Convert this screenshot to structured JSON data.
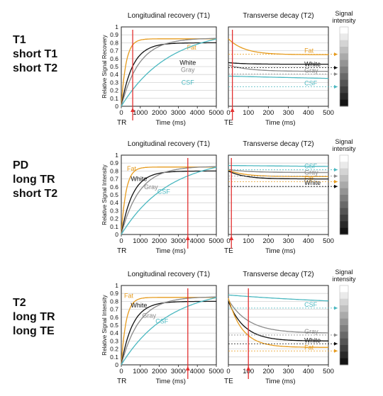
{
  "colors": {
    "fat": "#e69b1e",
    "white": "#111111",
    "gray": "#8a8a8a",
    "csf": "#4bb8c0",
    "marker": "#e23030"
  },
  "legend_title": [
    "Signal",
    "intensity"
  ],
  "chart_data": [
    {
      "type": "line",
      "row_label": [
        "T1",
        "short T1",
        "short T2"
      ],
      "panel": "T1",
      "title": "Longitudinal recovery (T1)",
      "xlabel": "Time (ms)",
      "ylabel": "Relative Signal Recovery",
      "param_label": "TR",
      "xlim": [
        0,
        5000
      ],
      "ylim": [
        0,
        1
      ],
      "xticks": [
        "0",
        "1000",
        "2000",
        "3000",
        "4000",
        "5000"
      ],
      "yticks": [
        "0",
        "0.1",
        "0.2",
        "0.3",
        "0.4",
        "0.5",
        "0.6",
        "0.7",
        "0.8",
        "0.9",
        "1"
      ],
      "marker_x": 600,
      "series": [
        {
          "name": "Fat",
          "T": 250,
          "M0": 0.85,
          "color": "fat"
        },
        {
          "name": "White",
          "T": 600,
          "M0": 0.8,
          "color": "white"
        },
        {
          "name": "Gray",
          "T": 950,
          "M0": 0.86,
          "color": "gray"
        },
        {
          "name": "CSF",
          "T": 2500,
          "M0": 0.98,
          "color": "csf"
        }
      ]
    },
    {
      "type": "line",
      "panel": "T2",
      "title": "Transverse decay (T2)",
      "xlabel": "Time (ms)",
      "param_label": "TE",
      "xlim": [
        0,
        500
      ],
      "ylim": [
        0,
        1
      ],
      "xticks": [
        "0",
        "100",
        "200",
        "300",
        "400",
        "500"
      ],
      "marker_x": 20,
      "series": [
        {
          "name": "Fat",
          "T": 80,
          "start": 0.85,
          "end": 0.65,
          "color": "fat"
        },
        {
          "name": "White",
          "T": 80,
          "start": 0.55,
          "end": 0.53,
          "color": "white"
        },
        {
          "name": "Gray",
          "T": 100,
          "start": 0.52,
          "end": 0.44,
          "color": "gray"
        },
        {
          "name": "CSF",
          "T": 2000,
          "start": 0.38,
          "end": 0.25,
          "color": "csf"
        }
      ]
    },
    {
      "type": "line",
      "row_label": [
        "PD",
        "long TR",
        "short T2"
      ],
      "panel": "T1",
      "title": "Longitudinal recovery (T1)",
      "xlabel": "Time (ms)",
      "ylabel": "Relative Signal Intensity",
      "param_label": "TR",
      "xlim": [
        0,
        5000
      ],
      "ylim": [
        0,
        1
      ],
      "xticks": [
        "0",
        "1000",
        "2000",
        "3000",
        "4000",
        "5000"
      ],
      "yticks": [
        "0",
        "0.1",
        "0.2",
        "0.3",
        "0.4",
        "0.5",
        "0.6",
        "0.7",
        "0.8",
        "0.9",
        "1"
      ],
      "marker_x": 3500,
      "series": [
        {
          "name": "Fat",
          "T": 250,
          "M0": 0.85,
          "color": "fat"
        },
        {
          "name": "White",
          "T": 600,
          "M0": 0.8,
          "color": "white"
        },
        {
          "name": "Gray",
          "T": 950,
          "M0": 0.86,
          "color": "gray"
        },
        {
          "name": "CSF",
          "T": 2500,
          "M0": 0.98,
          "color": "csf"
        }
      ]
    },
    {
      "type": "line",
      "panel": "T2",
      "title": "Transverse decay (T2)",
      "xlabel": "Time (ms)",
      "param_label": "TE",
      "xlim": [
        0,
        500
      ],
      "ylim": [
        0,
        1
      ],
      "xticks": [
        "0",
        "100",
        "200",
        "300",
        "400",
        "500"
      ],
      "marker_x": 15,
      "series": [
        {
          "name": "CSF",
          "T": 1000,
          "start": 0.87,
          "end": 0.84,
          "color": "csf"
        },
        {
          "name": "Gray",
          "T": 100,
          "start": 0.82,
          "end": 0.78,
          "color": "gray"
        },
        {
          "name": "Fat",
          "T": 80,
          "start": 0.81,
          "end": 0.73,
          "color": "fat"
        },
        {
          "name": "White",
          "T": 80,
          "start": 0.8,
          "end": 0.7,
          "color": "white"
        }
      ]
    },
    {
      "type": "line",
      "row_label": [
        "T2",
        "long TR",
        "long TE"
      ],
      "panel": "T1",
      "title": "Longitudinal recovery (T1)",
      "xlabel": "Time (ms)",
      "ylabel": "Relative Signal Intensity",
      "param_label": "TR",
      "xlim": [
        0,
        5000
      ],
      "ylim": [
        0,
        1
      ],
      "xticks": [
        "0",
        "1000",
        "2000",
        "3000",
        "4000",
        "5000"
      ],
      "yticks": [
        "0",
        "0.1",
        "0.2",
        "0.3",
        "0.4",
        "0.5",
        "0.6",
        "0.7",
        "0.8",
        "0.9",
        "1"
      ],
      "marker_x": 3500,
      "series": [
        {
          "name": "Fat",
          "T": 250,
          "M0": 0.85,
          "color": "fat"
        },
        {
          "name": "White",
          "T": 600,
          "M0": 0.8,
          "color": "white"
        },
        {
          "name": "Gray",
          "T": 950,
          "M0": 0.86,
          "color": "gray"
        },
        {
          "name": "CSF",
          "T": 2500,
          "M0": 0.98,
          "color": "csf"
        }
      ]
    },
    {
      "type": "line",
      "panel": "T2",
      "title": "Transverse decay (T2)",
      "xlabel": "Time (ms)",
      "param_label": "TE",
      "xlim": [
        0,
        500
      ],
      "ylim": [
        0,
        1
      ],
      "xticks": [
        "0",
        "100",
        "200",
        "300",
        "400",
        "500"
      ],
      "marker_x": 100,
      "series": [
        {
          "name": "CSF",
          "T": 800,
          "start": 0.88,
          "end": 0.72,
          "color": "csf"
        },
        {
          "name": "Gray",
          "T": 100,
          "start": 0.82,
          "end": 0.4,
          "color": "gray"
        },
        {
          "name": "White",
          "T": 80,
          "start": 0.8,
          "end": 0.3,
          "color": "white"
        },
        {
          "name": "Fat",
          "T": 70,
          "start": 0.84,
          "end": 0.22,
          "color": "fat"
        }
      ]
    }
  ]
}
